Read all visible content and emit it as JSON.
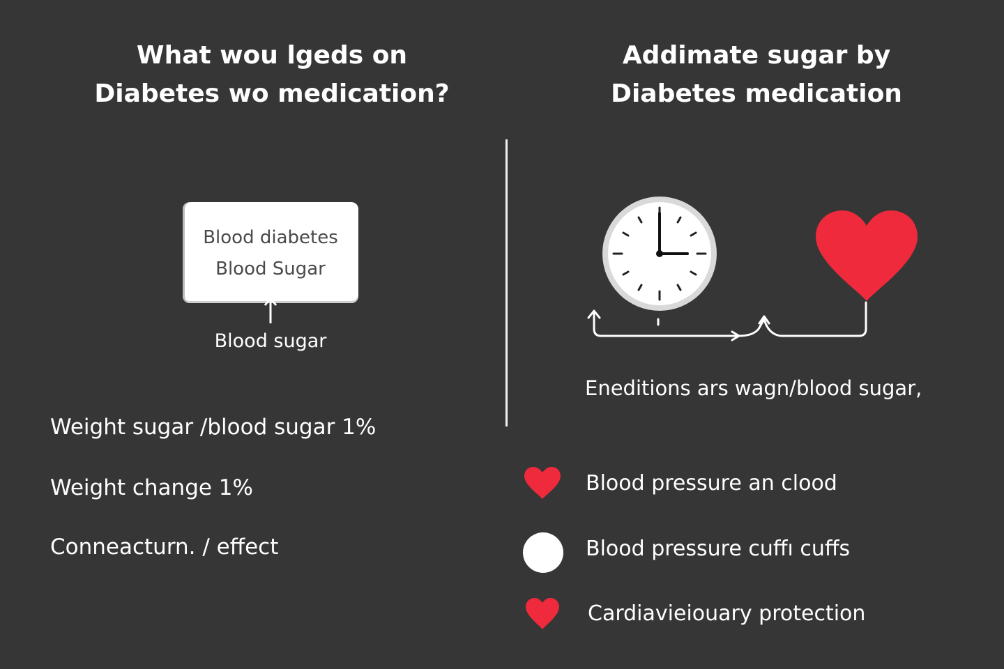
{
  "left_panel": {
    "title_lines": [
      "What wou lgeds on",
      "Diabetes wo medication?"
    ],
    "box": {
      "line1": "Blood diabetes",
      "line2": "Blood Sugar"
    },
    "box_caption": "Blood sugar",
    "stats": [
      "Weight sugar /blood sugar 1%",
      "Weight change 1%",
      "Conneacturn. / effect"
    ]
  },
  "right_panel": {
    "title_lines": [
      "Addimate sugar by",
      "Diabetes medication"
    ],
    "caption": "Eneditions ars wagn/blood sugar,",
    "legend": [
      {
        "icon": "heart-icon",
        "label": "Blood pressure an clood"
      },
      {
        "icon": "circle-icon",
        "label": "Blood pressure cuffı cuffs"
      },
      {
        "icon": "heart-icon",
        "label": "Cardiavieiouary protection"
      }
    ]
  },
  "colors": {
    "background": "#363636",
    "text": "#ffffff",
    "heart": "#ee2a3c",
    "box_text": "#4a4a4a"
  }
}
